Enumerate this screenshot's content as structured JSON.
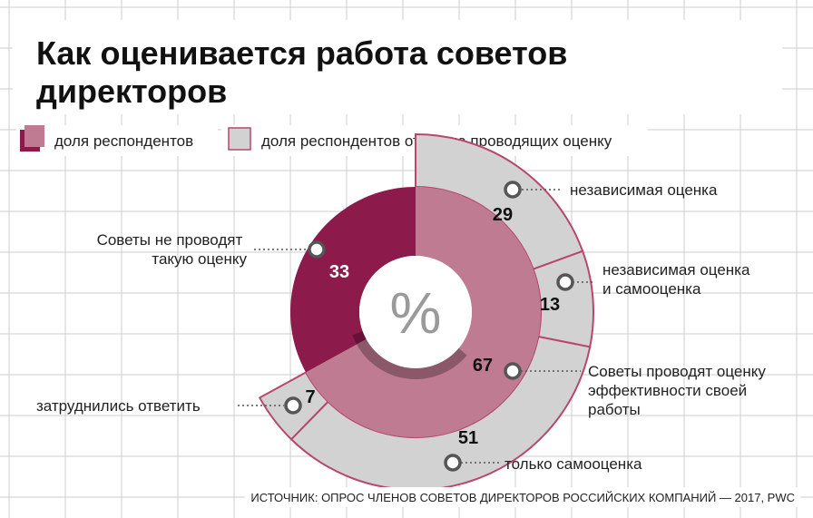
{
  "title_line1": "Как оценивается работа советов",
  "title_line2": "директоров",
  "legend": {
    "respondents": "доля респондентов",
    "respondents_of_evaluating": "доля респондентов от числа проводящих оценку"
  },
  "center_symbol": "%",
  "source": "ИСТОЧНИК: ОПРОС ЧЛЕНОВ СОВЕТОВ ДИРЕКТОРОВ РОССИЙСКИХ КОМПАНИЙ — 2017, PWC",
  "colors": {
    "dark": "#8c1a4b",
    "medium": "#bf7b92",
    "outer": "#d2d2d2",
    "outer_border": "#b8476d",
    "grid": "#cccccc"
  },
  "chart_data": {
    "type": "pie",
    "title": "Как оценивается работа советов директоров",
    "unit": "%",
    "series": [
      {
        "name": "доля респондентов",
        "values": [
          {
            "label": "Советы не проводят такую оценку",
            "value": 33
          },
          {
            "label": "Советы проводят оценку эффективности своей работы",
            "value": 67
          }
        ]
      },
      {
        "name": "доля респондентов от числа проводящих оценку",
        "values": [
          {
            "label": "независимая оценка",
            "value": 29
          },
          {
            "label": "независимая оценка и самооценка",
            "value": 13
          },
          {
            "label": "только самооценка",
            "value": 51
          },
          {
            "label": "затруднились ответить",
            "value": 7
          }
        ]
      }
    ]
  },
  "labels": {
    "not_conducting": [
      "Советы не проводят",
      "такую оценку"
    ],
    "conducting": [
      "Советы проводят оценку",
      "эффективности своей",
      "работы"
    ],
    "independent": [
      "независимая оценка"
    ],
    "independent_self": [
      "независимая оценка",
      "и самооценка"
    ],
    "self_only": [
      "только самооценка"
    ],
    "unsure": [
      "затруднились ответить"
    ]
  },
  "value_text": {
    "not_conducting": "33",
    "conducting": "67",
    "independent": "29",
    "independent_self": "13",
    "self_only": "51",
    "unsure": "7"
  }
}
